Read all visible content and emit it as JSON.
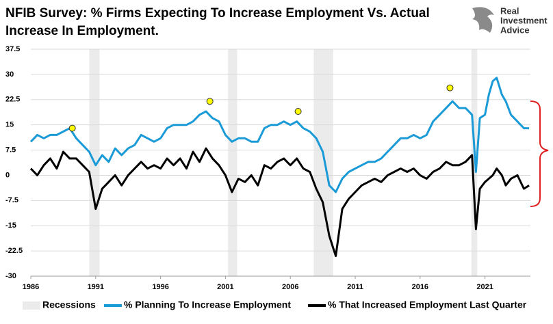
{
  "chart_data": {
    "type": "line",
    "title": [
      "NFIB Survey:  % Firms Expecting To Increase Employment Vs. Actual",
      "Increase In Employment."
    ],
    "logo": [
      "Real",
      "Investment",
      "Advice"
    ],
    "x": [
      1986,
      1986.5,
      1987,
      1987.5,
      1988,
      1988.5,
      1989,
      1989.5,
      1990,
      1990.5,
      1991,
      1991.5,
      1992,
      1992.5,
      1993,
      1993.5,
      1994,
      1994.5,
      1995,
      1995.5,
      1996,
      1996.5,
      1997,
      1997.5,
      1998,
      1998.5,
      1999,
      1999.5,
      2000,
      2000.5,
      2001,
      2001.5,
      2002,
      2002.5,
      2003,
      2003.5,
      2004,
      2004.5,
      2005,
      2005.5,
      2006,
      2006.5,
      2007,
      2007.5,
      2008,
      2008.5,
      2009,
      2009.5,
      2010,
      2010.5,
      2011,
      2011.5,
      2012,
      2012.5,
      2013,
      2013.5,
      2014,
      2014.5,
      2015,
      2015.5,
      2016,
      2016.5,
      2017,
      2017.5,
      2018,
      2018.5,
      2019,
      2019.5,
      2020,
      2020.3,
      2020.6,
      2021,
      2021.3,
      2021.6,
      2021.9,
      2022.3,
      2022.6,
      2023,
      2023.5,
      2024,
      2024.4
    ],
    "series": [
      {
        "name": "% Planning To Increase Employment",
        "color": "#1a9ad6",
        "values": [
          10,
          12,
          11,
          12,
          12,
          13,
          14,
          11,
          9,
          7,
          3,
          6,
          4,
          8,
          6,
          8,
          9,
          12,
          11,
          10,
          11,
          14,
          15,
          15,
          15,
          16,
          18,
          19,
          17,
          16,
          12,
          10,
          11,
          11,
          10,
          10,
          14,
          15,
          15,
          16,
          15,
          16,
          14,
          13,
          11,
          7,
          -3,
          -5,
          -1,
          1,
          2,
          3,
          4,
          4,
          5,
          7,
          9,
          11,
          11,
          12,
          11,
          12,
          16,
          18,
          20,
          22,
          20,
          20,
          18,
          1,
          17,
          18,
          24,
          28,
          29,
          24,
          22,
          18,
          16,
          14,
          14
        ]
      },
      {
        "name": "% That Increased Employment Last Quarter",
        "color": "#000000",
        "values": [
          2,
          0,
          3,
          5,
          2,
          7,
          5,
          5,
          3,
          1,
          -10,
          -4,
          -2,
          0,
          -3,
          0,
          2,
          4,
          2,
          3,
          2,
          5,
          3,
          5,
          2,
          7,
          4,
          8,
          5,
          3,
          0,
          -5,
          -1,
          -2,
          0,
          -3,
          3,
          2,
          4,
          5,
          3,
          5,
          2,
          1,
          -4,
          -8,
          -18,
          -24,
          -10,
          -7,
          -5,
          -3,
          -2,
          -1,
          -2,
          0,
          1,
          2,
          1,
          2,
          0,
          -1,
          1,
          2,
          4,
          3,
          3,
          4,
          6,
          -16,
          -4,
          -2,
          -1,
          0,
          2,
          0,
          -3,
          -1,
          0,
          -4,
          -3
        ]
      }
    ],
    "recessions": {
      "name": "Recessions",
      "color": "#ebebeb",
      "periods": [
        [
          1990.5,
          1991.3
        ],
        [
          2001.2,
          2001.9
        ],
        [
          2007.8,
          2009.3
        ],
        [
          2019.95,
          2020.4
        ]
      ]
    },
    "markers": {
      "color": "#ffff00",
      "x": [
        1989.2,
        1999.8,
        2006.6,
        2018.3
      ],
      "y": [
        14,
        22,
        19,
        26
      ]
    },
    "xlim": [
      1986,
      2024.5
    ],
    "xticks": [
      1986,
      1991,
      1996,
      2001,
      2006,
      2011,
      2016,
      2021
    ],
    "ylim": [
      -30,
      37.5
    ],
    "yticks": [
      37.5,
      30,
      22.5,
      15,
      7.5,
      0,
      -7.5,
      -15,
      -22.5,
      -30
    ],
    "grid": true
  }
}
